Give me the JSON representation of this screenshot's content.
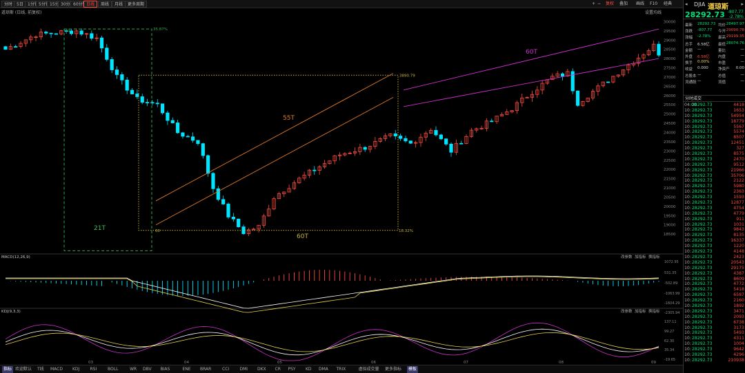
{
  "toolbar": {
    "periods": [
      "分时",
      "5日",
      "1分钟",
      "5分钟",
      "15分钟",
      "30分钟",
      "60分钟",
      "日线",
      "周线",
      "月线",
      "更多周期"
    ],
    "active_period": "日线",
    "right_items": [
      "复权",
      "叠加",
      "画线",
      "F10",
      "经典"
    ],
    "setting": "设置均线",
    "panel_left_label": "道琼斯 (日线, 前复权)"
  },
  "quote": {
    "code": "DJIA",
    "name": "道琼斯",
    "price": "28292.73",
    "change": "-807.77",
    "change_pct": "-2.78%",
    "stats": [
      {
        "label": "最新",
        "value": "28292.73",
        "vclass": "g",
        "label2": "均价",
        "value2": "28497.97",
        "v2class": "g"
      },
      {
        "label": "涨跌",
        "value": "-807.77",
        "vclass": "g",
        "label2": "今开",
        "value2": "29090.78",
        "v2class": "r"
      },
      {
        "label": "涨幅",
        "value": "-2.78%",
        "vclass": "g",
        "label2": "最高",
        "value2": "29199.35",
        "v2class": "r"
      },
      {
        "label": "总手",
        "value": "6.58亿",
        "vclass": "w",
        "label2": "最低",
        "value2": "28074.76",
        "v2class": "g"
      },
      {
        "label": "金额",
        "value": "—",
        "vclass": "w",
        "label2": "量比",
        "value2": "—",
        "v2class": "w"
      },
      {
        "label": "外盘",
        "value": "6.58亿",
        "vclass": "r",
        "label2": "内盘",
        "value2": "—",
        "v2class": "w"
      },
      {
        "label": "换手",
        "value": "0.00%",
        "vclass": "y",
        "label2": "市盈",
        "value2": "—",
        "v2class": "w"
      },
      {
        "label": "收益",
        "value": "0.000",
        "vclass": "w",
        "label2": "净资产",
        "value2": "0.00",
        "v2class": "w"
      },
      {
        "label": "总股本",
        "value": "—",
        "vclass": "w",
        "label2": "总值",
        "value2": "—",
        "v2class": "w"
      },
      {
        "label": "流通股",
        "value": "—",
        "vclass": "w",
        "label2": "流值",
        "value2": "—",
        "v2class": "w"
      }
    ],
    "tabs_label": "分时成交",
    "ticks": [
      {
        "t": "04:00",
        "p": "28292.73",
        "v": "4418"
      },
      {
        "t": "10:",
        "p": "28292.73",
        "v": "1653"
      },
      {
        "t": "10:",
        "p": "28292.73",
        "v": "54954"
      },
      {
        "t": "10:",
        "p": "28292.73",
        "v": "18779"
      },
      {
        "t": "10:",
        "p": "28292.73",
        "v": "5567"
      },
      {
        "t": "10:",
        "p": "28292.73",
        "v": "5574"
      },
      {
        "t": "10:",
        "p": "28292.73",
        "v": "8507"
      },
      {
        "t": "10:",
        "p": "28292.73",
        "v": "12451"
      },
      {
        "t": "10:",
        "p": "28292.73",
        "v": "327"
      },
      {
        "t": "10:",
        "p": "28292.73",
        "v": "8575"
      },
      {
        "t": "10:",
        "p": "28292.73",
        "v": "2470"
      },
      {
        "t": "10:",
        "p": "28292.73",
        "v": "9512"
      },
      {
        "t": "10:",
        "p": "28292.73",
        "v": "21966"
      },
      {
        "t": "10:",
        "p": "28292.73",
        "v": "35706"
      },
      {
        "t": "10:",
        "p": "28292.73",
        "v": "2122"
      },
      {
        "t": "10:",
        "p": "28292.73",
        "v": "5980"
      },
      {
        "t": "10:",
        "p": "28292.73",
        "v": "2363"
      },
      {
        "t": "10:",
        "p": "28292.73",
        "v": "1593"
      },
      {
        "t": "10:",
        "p": "28292.73",
        "v": "12877"
      },
      {
        "t": "10:",
        "p": "28292.73",
        "v": "4754"
      },
      {
        "t": "10:",
        "p": "28292.73",
        "v": "4779"
      },
      {
        "t": "10:",
        "p": "28292.73",
        "v": "911"
      },
      {
        "t": "10:",
        "p": "28292.73",
        "v": "1031"
      },
      {
        "t": "10:",
        "p": "28292.73",
        "v": "9843"
      },
      {
        "t": "10:",
        "p": "28292.73",
        "v": "8135"
      },
      {
        "t": "10:",
        "p": "28292.73",
        "v": "16337"
      },
      {
        "t": "10:",
        "p": "28292.73",
        "v": "1220"
      },
      {
        "t": "10:",
        "p": "28292.73",
        "v": "4148"
      },
      {
        "t": "10:",
        "p": "28292.73",
        "v": "2423"
      },
      {
        "t": "10:",
        "p": "28292.73",
        "v": "20543"
      },
      {
        "t": "10:",
        "p": "28292.73",
        "v": "29175"
      },
      {
        "t": "10:",
        "p": "28292.73",
        "v": "4387"
      },
      {
        "t": "10:",
        "p": "28292.73",
        "v": "8609"
      },
      {
        "t": "10:",
        "p": "28292.73",
        "v": "4772"
      },
      {
        "t": "10:",
        "p": "28292.73",
        "v": "5418"
      },
      {
        "t": "10:",
        "p": "28292.73",
        "v": "6587"
      },
      {
        "t": "10:",
        "p": "28292.73",
        "v": "2160"
      },
      {
        "t": "10:",
        "p": "28292.73",
        "v": "1892"
      },
      {
        "t": "10:",
        "p": "28292.73",
        "v": "3471"
      },
      {
        "t": "10:",
        "p": "28292.73",
        "v": "2093"
      },
      {
        "t": "10:",
        "p": "28292.73",
        "v": "6738"
      },
      {
        "t": "10:",
        "p": "28292.73",
        "v": "3173"
      },
      {
        "t": "10:",
        "p": "28292.73",
        "v": "5493"
      },
      {
        "t": "10:",
        "p": "28292.73",
        "v": "4311"
      },
      {
        "t": "10:",
        "p": "28292.73",
        "v": "1004"
      },
      {
        "t": "10:",
        "p": "28292.73",
        "v": "9642"
      },
      {
        "t": "10:",
        "p": "28292.73",
        "v": "4296"
      },
      {
        "t": "10:",
        "p": "28292.73",
        "v": "210938"
      }
    ]
  },
  "panels": {
    "macd_label": "MACD(12,26,9)",
    "kdj_label": "KDJ(9,3,3)",
    "panel_tools": [
      "改参数",
      "加指标",
      "换指标"
    ]
  },
  "bottom_bar": {
    "items": [
      "指标",
      "欢迎默认",
      "T线",
      "MACD",
      "KDJ",
      "RSI",
      "BOLL",
      "WR",
      "DBV",
      "BIAS",
      "ENE",
      "BRAR",
      "CCI",
      "DMI",
      "DKX",
      "CR",
      "PSY",
      "KD",
      "DMA",
      "TRIX",
      "虚拟成交量",
      "更多指标",
      "模板"
    ],
    "active": "指标"
  },
  "annotations": {
    "a21": "21T",
    "a55": "55T",
    "a60": "60T",
    "a60b": "60T",
    "pct_top": "35.87%",
    "pct_bottom": "18.32%",
    "box_top_val": "3890.79",
    "box_bot_val": "60",
    "start_21": "T1"
  },
  "colors": {
    "up": "#ff4b3e",
    "down": "#00e5ff",
    "channel55": "#e07b28",
    "channel60": "#d030d0",
    "box21": "#2ea84a",
    "box60": "#c8b43a",
    "macd_dif": "#ffffff",
    "macd_dea": "#e8d44a",
    "kdj_k": "#ffffff",
    "kdj_d": "#e8d44a",
    "kdj_j": "#d030d0"
  },
  "chart_data": {
    "type": "candlestick",
    "title": "DJIA 道琼斯 (日线)",
    "ylim": [
      17500,
      30500
    ],
    "yticks": [
      18500,
      19000,
      19500,
      20000,
      20500,
      21000,
      21500,
      22000,
      22500,
      23000,
      23500,
      24000,
      24500,
      25000,
      25500,
      26000,
      26500,
      27000,
      27500,
      28000,
      28500,
      29000,
      29500,
      30000
    ],
    "xlabels": [
      "03",
      "04",
      "05",
      "06",
      "07",
      "08",
      "09"
    ],
    "macd_ticks": [
      "1072.95",
      "531.35",
      "-502.89",
      "-1063.99",
      "-1604.29",
      "-2305.94"
    ],
    "kdj_ticks": [
      "137.11",
      "99.27",
      "62.30",
      "35.34",
      "-19.65"
    ]
  }
}
